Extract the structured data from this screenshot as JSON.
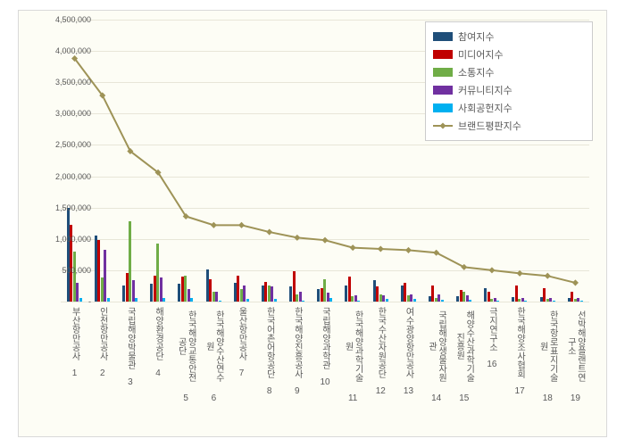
{
  "chart": {
    "type": "bar+line",
    "background_color": "#fdfdf5",
    "frame_border_color": "#d9d9d9",
    "grid_color": "#e8e6d8",
    "text_color": "#595959",
    "font_size_axis": 9,
    "font_size_legend": 11,
    "ylim": [
      0,
      4500000
    ],
    "yticks": [
      0,
      500000,
      1000000,
      1500000,
      2000000,
      2500000,
      3000000,
      3500000,
      4000000,
      4500000
    ],
    "ytick_labels": [
      "-",
      "500,000",
      "1,000,000",
      "1,500,000",
      "2,000,000",
      "2,500,000",
      "3,000,000",
      "3,500,000",
      "4,000,000",
      "4,500,000"
    ],
    "categories_index": [
      "1",
      "2",
      "3",
      "4",
      "5",
      "6",
      "7",
      "8",
      "9",
      "10",
      "11",
      "12",
      "13",
      "14",
      "15",
      "16",
      "17",
      "18",
      "19"
    ],
    "categories": [
      "부산항만공사",
      "인천항만공사",
      "국립해양박물관",
      "해양환경공단",
      "한국해양교통안전공단",
      "한국해양수산연수원",
      "울산항만공사",
      "한국어촌어항공단",
      "한국해양진흥공사",
      "국립해양과학관",
      "한국해양과학기술원",
      "한국수산자원공단",
      "여수광양항만공사",
      "국립해양생물자원관",
      "해양수산과학기술진흥원",
      "극지연구소",
      "한국해양조사협회",
      "한국항로표지기술원",
      "선박해양플랜트연구소"
    ],
    "series": [
      {
        "key": "s1",
        "label": "참여지수",
        "color": "#1f4e79",
        "type": "bar",
        "values": [
          1500000,
          1050000,
          260000,
          280000,
          280000,
          520000,
          300000,
          260000,
          240000,
          200000,
          260000,
          340000,
          260000,
          80000,
          80000,
          220000,
          70000,
          70000,
          60000
        ]
      },
      {
        "key": "s2",
        "label": "미디어지수",
        "color": "#c00000",
        "type": "bar",
        "values": [
          1220000,
          980000,
          460000,
          420000,
          400000,
          360000,
          420000,
          310000,
          480000,
          220000,
          400000,
          240000,
          300000,
          260000,
          180000,
          160000,
          260000,
          220000,
          160000
        ]
      },
      {
        "key": "s3",
        "label": "소통지수",
        "color": "#70ad47",
        "type": "bar",
        "values": [
          800000,
          380000,
          1280000,
          920000,
          420000,
          160000,
          200000,
          260000,
          120000,
          360000,
          80000,
          120000,
          100000,
          60000,
          160000,
          40000,
          40000,
          40000,
          40000
        ]
      },
      {
        "key": "s4",
        "label": "커뮤니티지수",
        "color": "#7030a0",
        "type": "bar",
        "values": [
          300000,
          820000,
          340000,
          380000,
          200000,
          160000,
          260000,
          240000,
          160000,
          140000,
          100000,
          100000,
          120000,
          120000,
          100000,
          60000,
          60000,
          60000,
          60000
        ]
      },
      {
        "key": "s5",
        "label": "사회공헌지수",
        "color": "#00b0f0",
        "type": "bar",
        "values": [
          60000,
          60000,
          60000,
          60000,
          60000,
          20000,
          40000,
          40000,
          20000,
          60000,
          20000,
          40000,
          40000,
          30000,
          30000,
          20000,
          20000,
          20000,
          20000
        ]
      },
      {
        "key": "s6",
        "label": "브랜드평판지수",
        "color": "#9e9357",
        "type": "line",
        "values": [
          3880000,
          3290000,
          2400000,
          2060000,
          1360000,
          1220000,
          1220000,
          1110000,
          1020000,
          980000,
          860000,
          840000,
          820000,
          780000,
          550000,
          500000,
          450000,
          410000,
          300000
        ],
        "line_width": 2,
        "marker": "diamond",
        "marker_size": 5
      }
    ],
    "legend": {
      "position": "top-right",
      "border_color": "#cccccc",
      "bg": "#ffffff"
    }
  }
}
